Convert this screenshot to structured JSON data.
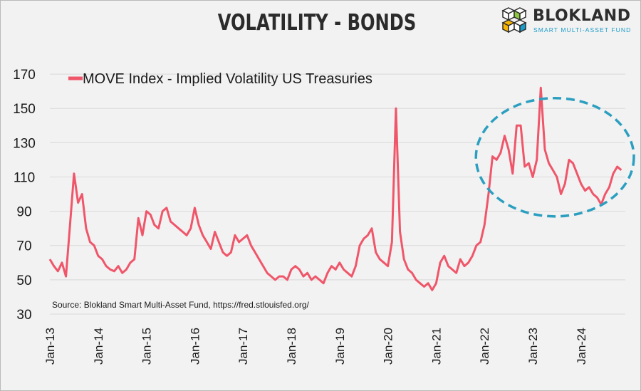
{
  "header": {
    "title": "VOLATILITY - BONDS",
    "logo_name": "BLOKLAND",
    "logo_tagline": "SMART MULTI-ASSET FUND"
  },
  "colors": {
    "series": "#f0566a",
    "annotation": "#2c9fc0",
    "grid": "#d9d9d9"
  },
  "chart_data": {
    "type": "line",
    "title": "VOLATILITY - BONDS",
    "legend": {
      "position": "top-left"
    },
    "source": "Source: Blokland Smart Multi-Asset Fund, https://fred.stlouisfed.org/",
    "xlim": [
      "2013-01",
      "2024-12"
    ],
    "ylim": [
      30,
      180
    ],
    "y_ticks": [
      30,
      50,
      70,
      90,
      110,
      130,
      150,
      170
    ],
    "x_ticks": [
      "Jan-13",
      "Jan-14",
      "Jan-15",
      "Jan-16",
      "Jan-17",
      "Jan-18",
      "Jan-19",
      "Jan-20",
      "Jan-21",
      "Jan-22",
      "Jan-23",
      "Jan-24"
    ],
    "grid": true,
    "annotation": {
      "shape": "dashed-ellipse",
      "x_range": [
        "2022-01",
        "2024-12"
      ],
      "y_range": [
        87,
        156
      ]
    },
    "series": [
      {
        "name": "MOVE Index - Implied Volatility US Treasuries",
        "x": [
          "2013-01",
          "2013-02",
          "2013-03",
          "2013-04",
          "2013-05",
          "2013-06",
          "2013-07",
          "2013-08",
          "2013-09",
          "2013-10",
          "2013-11",
          "2013-12",
          "2014-01",
          "2014-02",
          "2014-03",
          "2014-04",
          "2014-05",
          "2014-06",
          "2014-07",
          "2014-08",
          "2014-09",
          "2014-10",
          "2014-11",
          "2014-12",
          "2015-01",
          "2015-02",
          "2015-03",
          "2015-04",
          "2015-05",
          "2015-06",
          "2015-07",
          "2015-08",
          "2015-09",
          "2015-10",
          "2015-11",
          "2015-12",
          "2016-01",
          "2016-02",
          "2016-03",
          "2016-04",
          "2016-05",
          "2016-06",
          "2016-07",
          "2016-08",
          "2016-09",
          "2016-10",
          "2016-11",
          "2016-12",
          "2017-01",
          "2017-02",
          "2017-03",
          "2017-04",
          "2017-05",
          "2017-06",
          "2017-07",
          "2017-08",
          "2017-09",
          "2017-10",
          "2017-11",
          "2017-12",
          "2018-01",
          "2018-02",
          "2018-03",
          "2018-04",
          "2018-05",
          "2018-06",
          "2018-07",
          "2018-08",
          "2018-09",
          "2018-10",
          "2018-11",
          "2018-12",
          "2019-01",
          "2019-02",
          "2019-03",
          "2019-04",
          "2019-05",
          "2019-06",
          "2019-07",
          "2019-08",
          "2019-09",
          "2019-10",
          "2019-11",
          "2019-12",
          "2020-01",
          "2020-02",
          "2020-03",
          "2020-04",
          "2020-05",
          "2020-06",
          "2020-07",
          "2020-08",
          "2020-09",
          "2020-10",
          "2020-11",
          "2020-12",
          "2021-01",
          "2021-02",
          "2021-03",
          "2021-04",
          "2021-05",
          "2021-06",
          "2021-07",
          "2021-08",
          "2021-09",
          "2021-10",
          "2021-11",
          "2021-12",
          "2022-01",
          "2022-02",
          "2022-03",
          "2022-04",
          "2022-05",
          "2022-06",
          "2022-07",
          "2022-08",
          "2022-09",
          "2022-10",
          "2022-11",
          "2022-12",
          "2023-01",
          "2023-02",
          "2023-03",
          "2023-04",
          "2023-05",
          "2023-06",
          "2023-07",
          "2023-08",
          "2023-09",
          "2023-10",
          "2023-11",
          "2023-12",
          "2024-01",
          "2024-02",
          "2024-03",
          "2024-04",
          "2024-05",
          "2024-06",
          "2024-07",
          "2024-08",
          "2024-09",
          "2024-10",
          "2024-11"
        ],
        "values": [
          62,
          58,
          55,
          60,
          52,
          82,
          112,
          95,
          100,
          80,
          72,
          70,
          64,
          62,
          58,
          56,
          55,
          58,
          54,
          56,
          60,
          62,
          86,
          76,
          90,
          88,
          82,
          80,
          90,
          92,
          84,
          82,
          80,
          78,
          76,
          80,
          92,
          82,
          76,
          72,
          68,
          78,
          72,
          66,
          64,
          66,
          76,
          72,
          74,
          76,
          70,
          66,
          62,
          58,
          54,
          52,
          50,
          52,
          52,
          50,
          56,
          58,
          56,
          52,
          54,
          50,
          52,
          50,
          48,
          54,
          58,
          56,
          60,
          56,
          54,
          52,
          58,
          70,
          74,
          76,
          80,
          66,
          62,
          60,
          58,
          72,
          150,
          78,
          62,
          56,
          54,
          50,
          48,
          46,
          48,
          44,
          48,
          60,
          64,
          58,
          56,
          54,
          62,
          58,
          60,
          64,
          70,
          72,
          82,
          100,
          122,
          120,
          124,
          134,
          126,
          112,
          140,
          140,
          116,
          118,
          110,
          120,
          162,
          126,
          118,
          114,
          110,
          100,
          106,
          120,
          118,
          112,
          106,
          102,
          104,
          100,
          98,
          94,
          100,
          104,
          112,
          116,
          114
        ]
      }
    ]
  }
}
